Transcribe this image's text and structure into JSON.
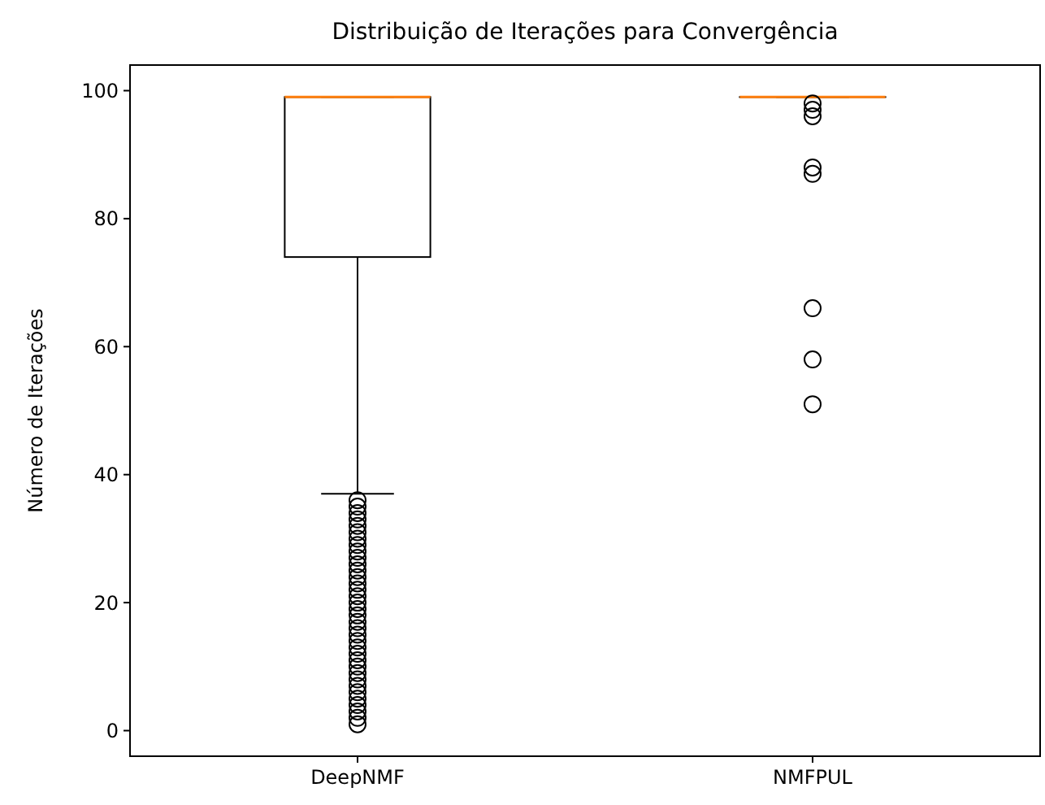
{
  "chart_data": {
    "type": "box",
    "title": "Distribuição de Iterações para Convergência",
    "ylabel": "Número de Iterações",
    "categories": [
      "DeepNMF",
      "NMFPUL"
    ],
    "boxes": [
      {
        "low": 37,
        "q1": 74,
        "median": 99,
        "q3": 99,
        "high": 99,
        "outliers": [
          1,
          2,
          3,
          4,
          5,
          6,
          7,
          8,
          9,
          10,
          11,
          12,
          13,
          14,
          15,
          16,
          17,
          18,
          19,
          20,
          21,
          22,
          23,
          24,
          25,
          26,
          27,
          28,
          29,
          30,
          31,
          32,
          33,
          34,
          35,
          36
        ]
      },
      {
        "low": 99,
        "q1": 99,
        "median": 99,
        "q3": 99,
        "high": 99,
        "outliers": [
          51,
          58,
          66,
          87,
          88,
          96,
          97,
          98
        ]
      }
    ],
    "ylim": [
      -4,
      104
    ],
    "yticks": [
      0,
      20,
      40,
      60,
      80,
      100
    ],
    "color": "#000000",
    "grid": false
  }
}
